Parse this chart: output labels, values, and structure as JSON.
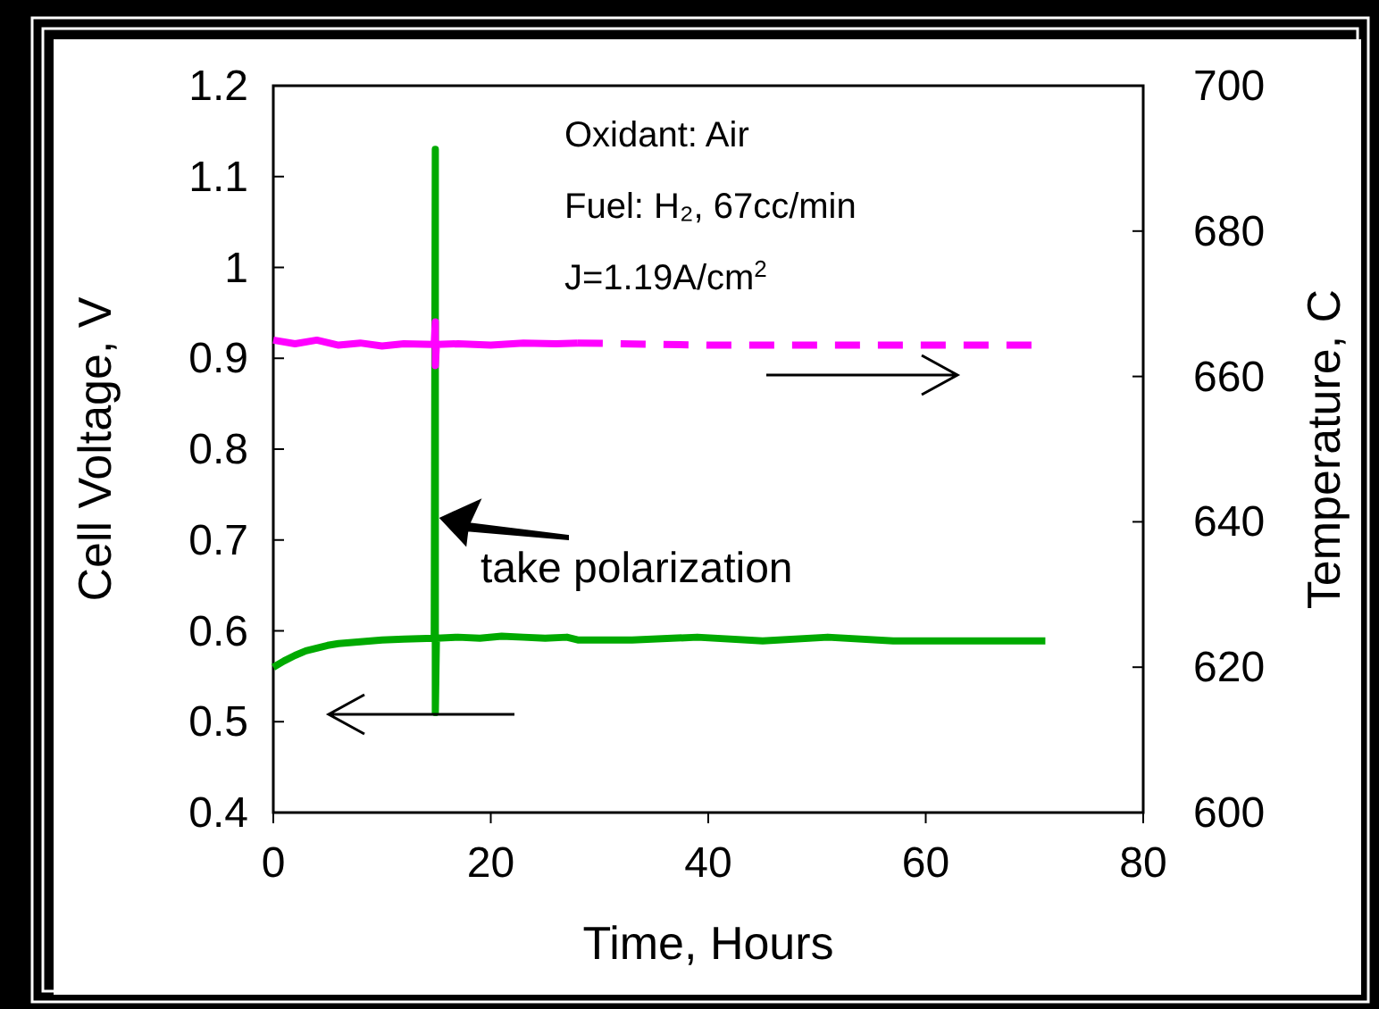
{
  "chart_data": {
    "type": "line",
    "xlabel": "Time, Hours",
    "ylabel": "Cell Voltage, V",
    "y2label": "Temperature, C",
    "xlim": [
      0,
      80
    ],
    "xticks": [
      0,
      20,
      40,
      60,
      80
    ],
    "ylim": [
      0.4,
      1.2
    ],
    "yticks": [
      0.4,
      0.5,
      0.6,
      0.7,
      0.8,
      0.9,
      1,
      1.1,
      1.2
    ],
    "y2lim": [
      600,
      700
    ],
    "y2ticks": [
      600,
      620,
      640,
      660,
      680,
      700
    ],
    "grid": false,
    "marker": "none",
    "series": [
      {
        "color": "#00aa00",
        "line_style": "solid",
        "x": [
          0,
          1,
          2,
          3,
          4,
          5,
          6,
          8,
          10,
          12,
          14.8,
          14.9,
          14.9,
          15,
          17,
          19,
          21,
          23,
          25,
          27,
          28,
          33,
          39,
          45,
          51,
          57,
          64,
          71
        ],
        "values": [
          0.56,
          0.567,
          0.573,
          0.578,
          0.581,
          0.584,
          0.586,
          0.588,
          0.59,
          0.591,
          0.592,
          1.13,
          0.51,
          0.592,
          0.593,
          0.592,
          0.594,
          0.593,
          0.592,
          0.593,
          0.59,
          0.59,
          0.593,
          0.589,
          0.593,
          0.589,
          0.589,
          0.589
        ]
      },
      {
        "color": "#ff00ff",
        "axis": "y2",
        "line_style": "solid",
        "x": [
          0,
          2,
          4,
          6,
          8,
          10,
          12,
          14.8,
          14.9,
          14.9,
          15,
          17,
          20,
          23,
          26,
          28
        ],
        "values": [
          665,
          664.5,
          665,
          664.3,
          664.6,
          664.2,
          664.5,
          664.4,
          667.5,
          661.5,
          664.4,
          664.5,
          664.3,
          664.6,
          664.5,
          664.6
        ]
      },
      {
        "color": "#ff00ff",
        "axis": "y2",
        "line_style": "dashed",
        "x": [
          28,
          40,
          50,
          60,
          70.2
        ],
        "values": [
          664.6,
          664.3,
          664.3,
          664.3,
          664.3
        ]
      }
    ],
    "annotations": [
      "Oxidant: Air",
      "Fuel: H₂, 67cc/min",
      "J=1.19A/cm$^{2}$",
      {
        "text": "take polarization",
        "x": 14.9,
        "y": 0.73
      }
    ]
  }
}
